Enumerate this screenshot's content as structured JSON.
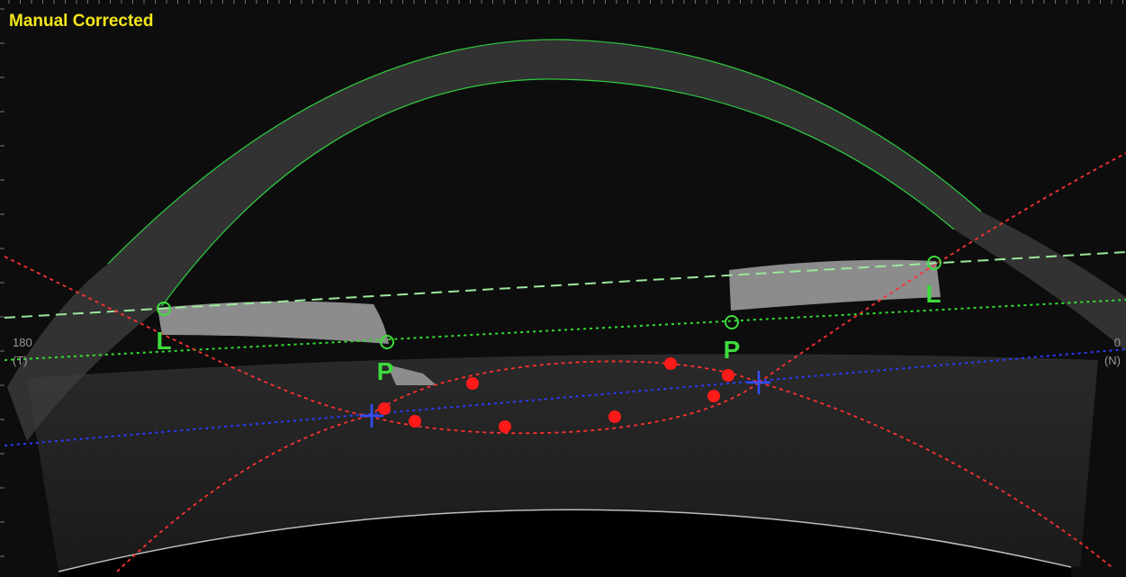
{
  "header": {
    "title": "Manual Corrected"
  },
  "markers": [
    {
      "label": "L"
    },
    {
      "label": "P"
    },
    {
      "label": "P"
    },
    {
      "label": "L"
    }
  ],
  "axis_labels": {
    "left": {
      "angle": "180",
      "side": "(T)"
    },
    "right": {
      "angle": "0",
      "side": "(N)"
    }
  }
}
